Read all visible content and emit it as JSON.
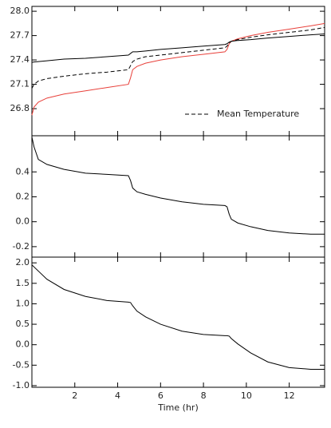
{
  "chart_data": [
    {
      "type": "line",
      "x": [
        0,
        0.1,
        0.3,
        0.7,
        1.5,
        2.5,
        3.5,
        4.5,
        4.6,
        4.7,
        4.9,
        5.3,
        6,
        7,
        8,
        9,
        9.1,
        9.2,
        9.3,
        9.6,
        10.2,
        11,
        12,
        13,
        13.65
      ],
      "series": [
        {
          "color": "#e8403a",
          "dash": false,
          "values": [
            26.72,
            26.82,
            26.88,
            26.93,
            26.98,
            27.02,
            27.06,
            27.1,
            27.18,
            27.28,
            27.32,
            27.36,
            27.4,
            27.44,
            27.47,
            27.5,
            27.53,
            27.6,
            27.63,
            27.66,
            27.7,
            27.74,
            27.78,
            27.82,
            27.85
          ]
        },
        {
          "color": "#000000",
          "dash": false,
          "values": [
            27.37,
            27.375,
            27.38,
            27.39,
            27.41,
            27.42,
            27.44,
            27.46,
            27.48,
            27.5,
            27.5,
            27.51,
            27.53,
            27.55,
            27.57,
            27.59,
            27.6,
            27.62,
            27.63,
            27.64,
            27.65,
            27.67,
            27.69,
            27.71,
            27.72
          ]
        },
        {
          "name": "Mean Temperature",
          "color": "#000000",
          "dash": true,
          "values": [
            27.05,
            27.1,
            27.14,
            27.17,
            27.2,
            27.23,
            27.25,
            27.28,
            27.33,
            27.38,
            27.41,
            27.44,
            27.46,
            27.49,
            27.52,
            27.55,
            27.57,
            27.61,
            27.63,
            27.65,
            27.68,
            27.71,
            27.74,
            27.77,
            27.8
          ]
        }
      ],
      "legend": "lower right",
      "xlim": [
        0,
        13.65
      ],
      "xticks": [
        2,
        4,
        6,
        8,
        10,
        12
      ],
      "ylim": [
        26.466,
        28.06
      ],
      "yticks": [
        26.8,
        27.1,
        27.4,
        27.7,
        {
          "value": 28,
          "label": "28.0"
        }
      ]
    },
    {
      "type": "line",
      "x": [
        0,
        0.1,
        0.3,
        0.7,
        1.5,
        2.5,
        3.5,
        4.5,
        4.6,
        4.7,
        4.9,
        5.3,
        6,
        7,
        8,
        9,
        9.1,
        9.2,
        9.3,
        9.6,
        10.2,
        11,
        12,
        13,
        13.65
      ],
      "series": [
        {
          "color": "#000000",
          "dash": false,
          "values": [
            0.68,
            0.6,
            0.5,
            0.46,
            0.42,
            0.39,
            0.38,
            0.37,
            0.33,
            0.27,
            0.24,
            0.22,
            0.19,
            0.16,
            0.14,
            0.13,
            0.12,
            0.06,
            0.02,
            -0.01,
            -0.04,
            -0.07,
            -0.09,
            -0.1,
            -0.1
          ]
        }
      ],
      "xlim": [
        0,
        13.65
      ],
      "xticks": [
        2,
        4,
        6,
        8,
        10,
        12
      ],
      "ylim": [
        -0.284,
        0.69
      ],
      "yticks": [
        -0.2,
        {
          "value": 0,
          "label": "0.0"
        },
        0.2,
        0.4
      ]
    },
    {
      "type": "line",
      "x": [
        0,
        0.1,
        0.3,
        0.7,
        1.5,
        2.5,
        3.5,
        4.5,
        4.6,
        4.7,
        4.9,
        5.3,
        6,
        7,
        8,
        9,
        9.1,
        9.2,
        9.3,
        9.6,
        10.2,
        11,
        12,
        13,
        13.65
      ],
      "series": [
        {
          "color": "#000000",
          "dash": false,
          "values": [
            1.95,
            1.9,
            1.8,
            1.6,
            1.35,
            1.18,
            1.08,
            1.04,
            1.03,
            0.95,
            0.82,
            0.68,
            0.5,
            0.33,
            0.25,
            0.22,
            0.22,
            0.21,
            0.15,
            0.02,
            -0.2,
            -0.42,
            -0.56,
            -0.6,
            -0.6
          ]
        }
      ],
      "xlabel": "Time (hr)",
      "xlim": [
        0,
        13.65
      ],
      "xticks": [
        2,
        4,
        6,
        8,
        10,
        12
      ],
      "ylim": [
        -1.04,
        2.14
      ],
      "yticks": [
        {
          "value": -1,
          "label": "-1.0"
        },
        -0.5,
        {
          "value": 0,
          "label": "0.0"
        },
        0.5,
        {
          "value": 1,
          "label": "1.0"
        },
        1.5,
        {
          "value": 2,
          "label": "2.0"
        }
      ]
    }
  ]
}
